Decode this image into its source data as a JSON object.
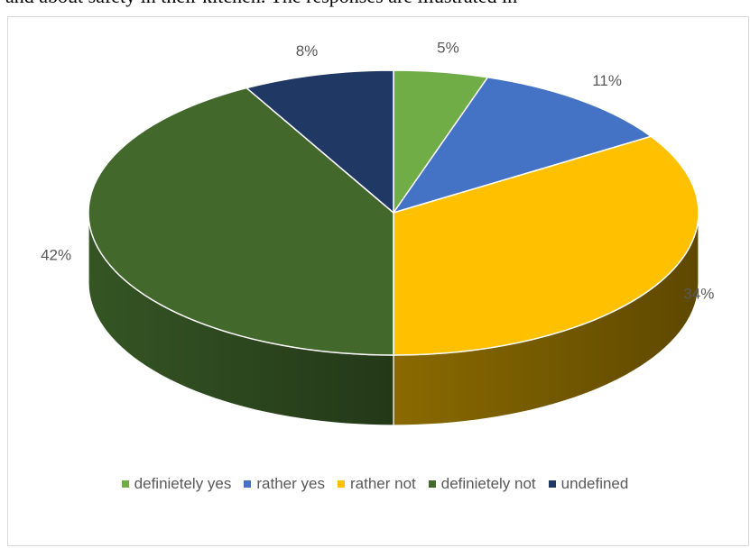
{
  "header_text": "and about safety in their kitchen. The responses are illustrated in",
  "chart_data": {
    "type": "pie",
    "three_d": true,
    "categories": [
      "definietely yes",
      "rather yes",
      "rather not",
      "definietely not",
      "undefined"
    ],
    "values": [
      5,
      11,
      34,
      42,
      8
    ],
    "labels": [
      "5%",
      "11%",
      "34%",
      "42%",
      "8%"
    ],
    "colors": [
      "#70ad47",
      "#4472c4",
      "#ffc000",
      "#43682b",
      "#203864"
    ],
    "side_colors": [
      "#4d7a30",
      "#2f5597",
      "#7f6000",
      "#2c451c",
      "#15264a"
    ],
    "legend_position": "bottom"
  }
}
